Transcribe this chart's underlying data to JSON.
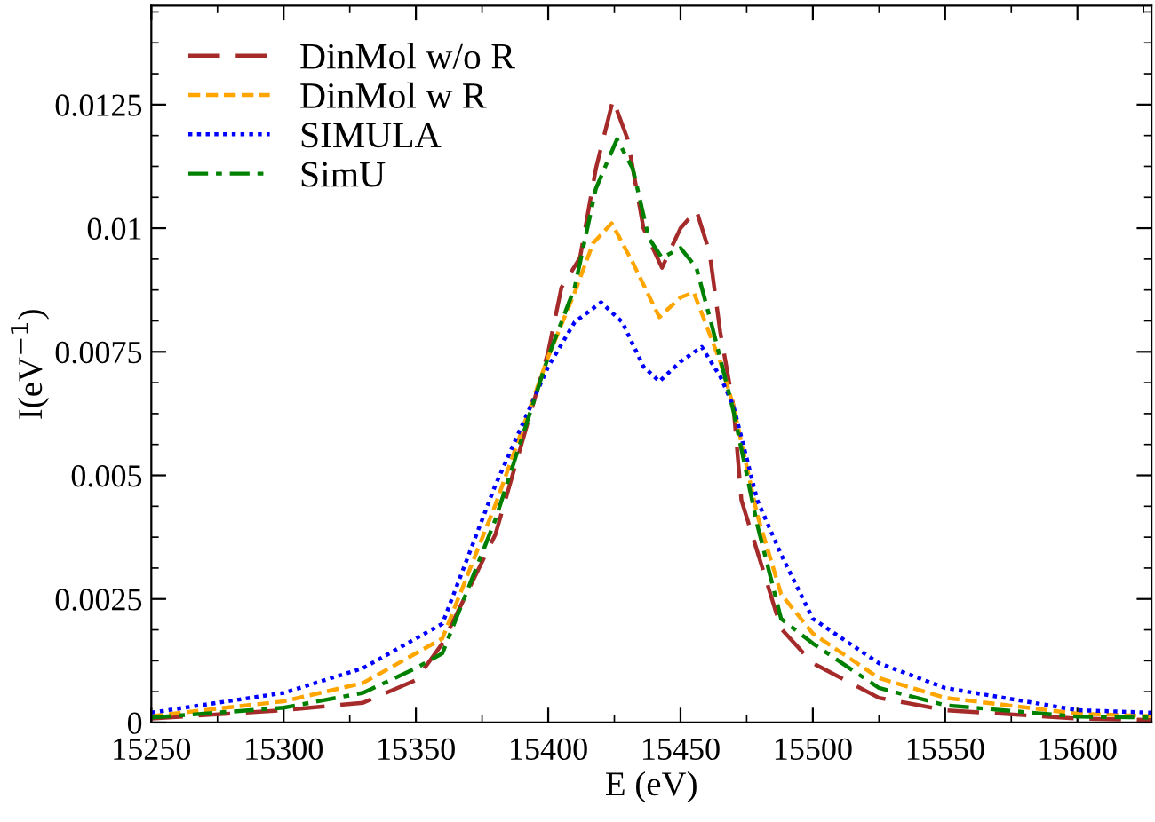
{
  "chart_data": {
    "type": "line",
    "xlabel": "E (eV)",
    "ylabel": "I(eV$^{−1}$)",
    "xlim": [
      15250,
      15628
    ],
    "xticks": [
      15250,
      15300,
      15350,
      15400,
      15450,
      15500,
      15550,
      15600
    ],
    "ylim": [
      0,
      0.0145
    ],
    "yticks": [
      0,
      0.0025,
      0.005,
      0.0075,
      0.01,
      0.0125
    ],
    "grid": false,
    "legend": "top left",
    "marker": "none",
    "series": [
      {
        "name": "DinMol w/o R",
        "color": "#a52a2a",
        "line_style": "dashed",
        "x": [
          15250,
          15300,
          15330,
          15350,
          15360,
          15380,
          15400,
          15405,
          15412,
          15418,
          15424.5,
          15430,
          15436,
          15443,
          15450,
          15456,
          15461,
          15465,
          15470,
          15473,
          15488,
          15500,
          15525,
          15550,
          15600,
          15628
        ],
        "values": [
          8e-05,
          0.00025,
          0.0004,
          0.00086,
          0.0016,
          0.0038,
          0.0075,
          0.0088,
          0.0094,
          0.0112,
          0.0126,
          0.0118,
          0.01,
          0.0092,
          0.01,
          0.01036,
          0.0095,
          0.0079,
          0.0064,
          0.0045,
          0.0019,
          0.0012,
          0.0005,
          0.00025,
          8e-05,
          5e-05
        ]
      },
      {
        "name": "DinMol w R",
        "color": "#ffa500",
        "line_style": "dashed",
        "x": [
          15250,
          15300,
          15330,
          15350,
          15360,
          15380,
          15400,
          15410,
          15417,
          15424,
          15432,
          15442,
          15450,
          15455,
          15460,
          15465,
          15470,
          15479,
          15488,
          15500,
          15525,
          15550,
          15600,
          15628
        ],
        "values": [
          0.00013,
          0.00043,
          0.0008,
          0.0014,
          0.0017,
          0.0044,
          0.0074,
          0.0087,
          0.0097,
          0.0101,
          0.0093,
          0.0082,
          0.0086,
          0.0087,
          0.008,
          0.0073,
          0.0064,
          0.0042,
          0.0026,
          0.0018,
          0.0009,
          0.0005,
          0.00018,
          0.00013
        ]
      },
      {
        "name": "SIMULA",
        "color": "#0000ff",
        "line_style": "dotted",
        "x": [
          15250,
          15300,
          15330,
          15350,
          15360,
          15380,
          15400,
          15410,
          15420,
          15428,
          15436,
          15442,
          15450,
          15458,
          15465,
          15470,
          15479,
          15488,
          15500,
          15525,
          15550,
          15600,
          15628
        ],
        "values": [
          0.0002,
          0.0006,
          0.0011,
          0.0017,
          0.002,
          0.0048,
          0.0072,
          0.0081,
          0.0085,
          0.0081,
          0.0072,
          0.0069,
          0.0073,
          0.0076,
          0.007,
          0.0064,
          0.0045,
          0.0034,
          0.0021,
          0.0012,
          0.0007,
          0.00025,
          0.0002
        ]
      },
      {
        "name": "SimU",
        "color": "#008000",
        "line_style": "dashdot",
        "x": [
          15250,
          15300,
          15330,
          15350,
          15360,
          15380,
          15400,
          15410,
          15418,
          15426,
          15432,
          15438,
          15443,
          15450,
          15456,
          15462,
          15470,
          15479,
          15488,
          15500,
          15525,
          15550,
          15600,
          15628
        ],
        "values": [
          0.0001,
          0.0003,
          0.0006,
          0.0011,
          0.0014,
          0.0041,
          0.0074,
          0.0088,
          0.0108,
          0.0118,
          0.0112,
          0.0098,
          0.0094,
          0.0096,
          0.0092,
          0.008,
          0.0063,
          0.004,
          0.0021,
          0.0016,
          0.0007,
          0.00035,
          0.00012,
          0.0001
        ]
      }
    ]
  }
}
